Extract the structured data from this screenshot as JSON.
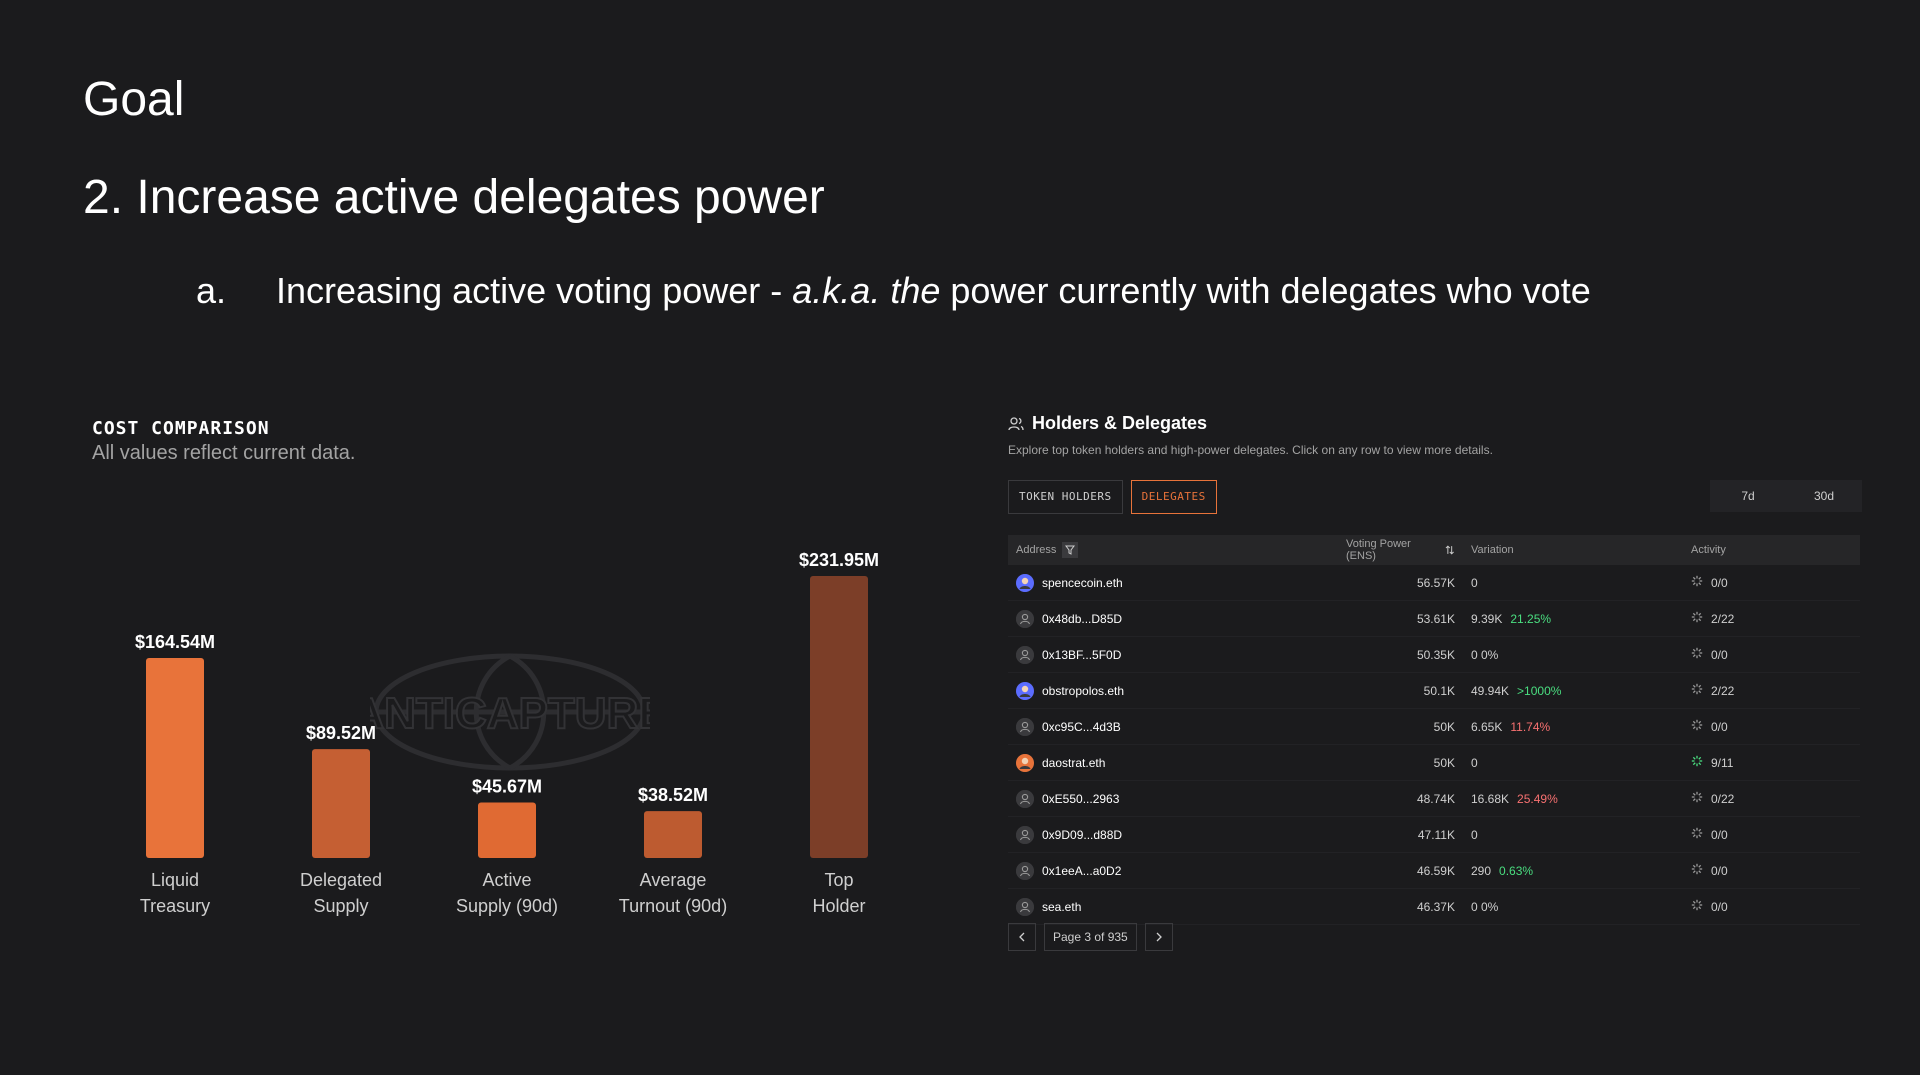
{
  "slide": {
    "title": "Goal",
    "subtitle": "2. Increase active delegates power",
    "bullet": {
      "marker": "a.",
      "text_before": "Increasing active voting power - ",
      "text_italic": "a.k.a. the",
      "text_after": " power currently with delegates who vote"
    }
  },
  "cost_comparison": {
    "heading": "COST COMPARISON",
    "subtitle": "All values reflect current data.",
    "watermark": "ANTICAPTURE"
  },
  "chart_data": {
    "type": "bar",
    "title": "COST COMPARISON",
    "subtitle": "All values reflect current data.",
    "categories": [
      [
        "Liquid",
        "Treasury"
      ],
      [
        "Delegated",
        "Supply"
      ],
      [
        "Active",
        "Supply (90d)"
      ],
      [
        "Average",
        "Turnout (90d)"
      ],
      [
        "Top",
        "Holder"
      ]
    ],
    "values": [
      164.54,
      89.52,
      45.67,
      38.52,
      231.95
    ],
    "value_labels": [
      "$164.54M",
      "$89.52M",
      "$45.67M",
      "$38.52M",
      "$231.95M"
    ],
    "colors": [
      "#e8733a",
      "#c55f33",
      "#e06a33",
      "#bd5b30",
      "#7c3e28"
    ],
    "ylim": [
      0,
      231.95
    ],
    "grid": false,
    "legend": "none"
  },
  "holders_delegates": {
    "title": "Holders & Delegates",
    "description": "Explore top token holders and high-power delegates. Click on any row to view more details.",
    "tabs": [
      {
        "label": "TOKEN HOLDERS",
        "active": false
      },
      {
        "label": "DELEGATES",
        "active": true
      }
    ],
    "periods": [
      "7d",
      "30d"
    ],
    "columns": {
      "address": "Address",
      "voting_power": "Voting Power (ENS)",
      "variation": "Variation",
      "activity": "Activity"
    },
    "rows": [
      {
        "address": "spencecoin.eth",
        "avatar": "custom",
        "voting_power": "56.57K",
        "variation": "0",
        "pct": "",
        "pct_dir": "",
        "activity": "0/0",
        "activity_icon": "grey"
      },
      {
        "address": "0x48db...D85D",
        "avatar": "default",
        "voting_power": "53.61K",
        "variation": "9.39K",
        "pct": "21.25%",
        "pct_dir": "pos",
        "activity": "2/22",
        "activity_icon": "grey"
      },
      {
        "address": "0x13BF...5F0D",
        "avatar": "default",
        "voting_power": "50.35K",
        "variation": "0 0%",
        "pct": "",
        "pct_dir": "",
        "activity": "0/0",
        "activity_icon": "grey"
      },
      {
        "address": "obstropolos.eth",
        "avatar": "custom",
        "voting_power": "50.1K",
        "variation": "49.94K",
        "pct": ">1000%",
        "pct_dir": "pos",
        "activity": "2/22",
        "activity_icon": "grey"
      },
      {
        "address": "0xc95C...4d3B",
        "avatar": "default",
        "voting_power": "50K",
        "variation": "6.65K",
        "pct": "11.74%",
        "pct_dir": "neg",
        "activity": "0/0",
        "activity_icon": "grey"
      },
      {
        "address": "daostrat.eth",
        "avatar": "custom",
        "voting_power": "50K",
        "variation": "0",
        "pct": "",
        "pct_dir": "",
        "activity": "9/11",
        "activity_icon": "green"
      },
      {
        "address": "0xE550...2963",
        "avatar": "default",
        "voting_power": "48.74K",
        "variation": "16.68K",
        "pct": "25.49%",
        "pct_dir": "neg",
        "activity": "0/22",
        "activity_icon": "grey"
      },
      {
        "address": "0x9D09...d88D",
        "avatar": "default",
        "voting_power": "47.11K",
        "variation": "0",
        "pct": "",
        "pct_dir": "",
        "activity": "0/0",
        "activity_icon": "grey"
      },
      {
        "address": "0x1eeA...a0D2",
        "avatar": "default",
        "voting_power": "46.59K",
        "variation": "290",
        "pct": "0.63%",
        "pct_dir": "pos",
        "activity": "0/0",
        "activity_icon": "grey"
      },
      {
        "address": "sea.eth",
        "avatar": "default",
        "voting_power": "46.37K",
        "variation": "0 0%",
        "pct": "",
        "pct_dir": "",
        "activity": "0/0",
        "activity_icon": "grey"
      }
    ],
    "pagination": {
      "label": "Page 3 of 935"
    }
  }
}
